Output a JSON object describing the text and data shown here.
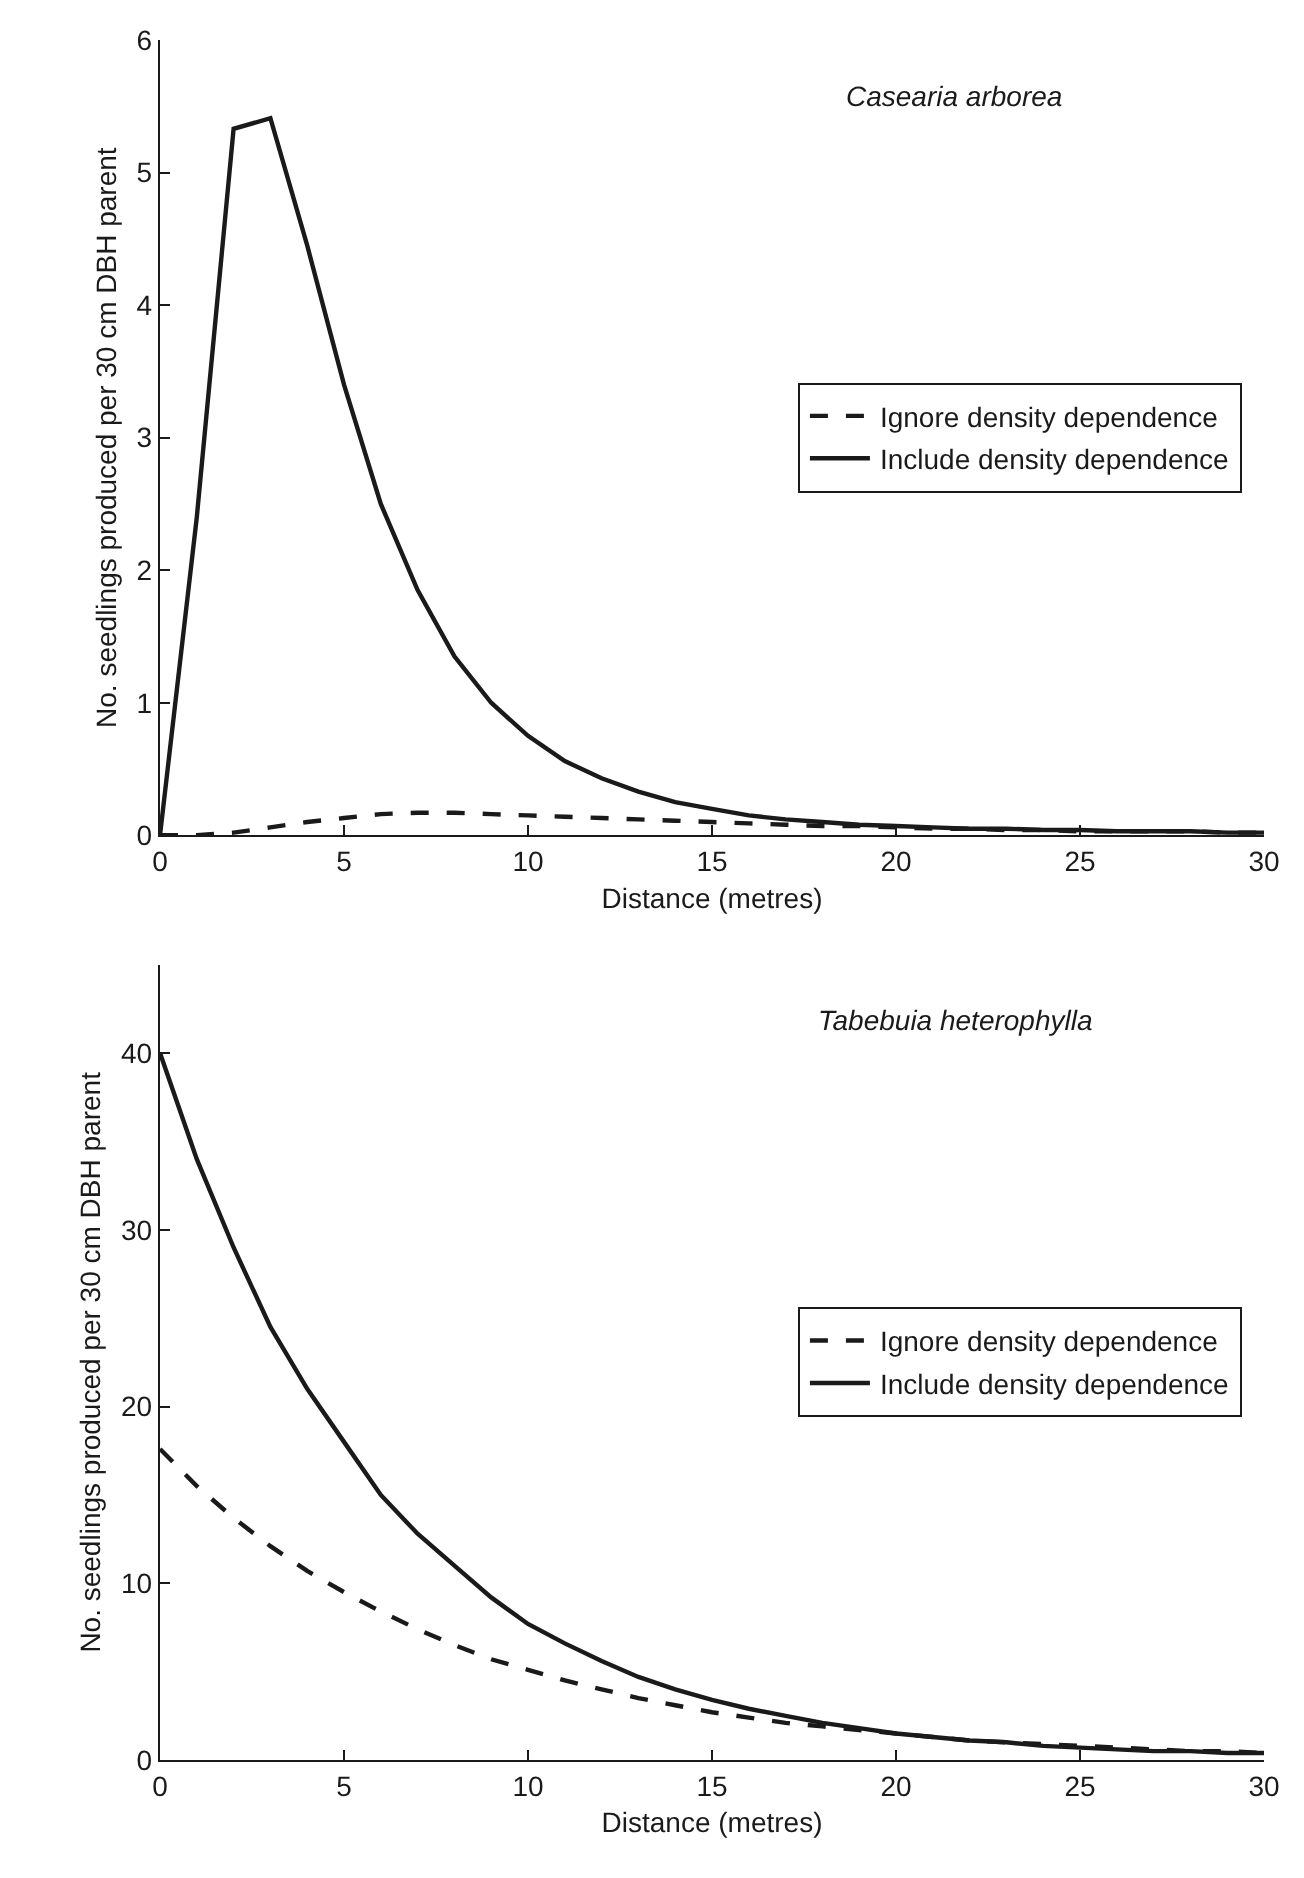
{
  "chart_data": [
    {
      "type": "line",
      "xlabel": "Distance (metres)",
      "ylabel": "No. seedlings produced per 30 cm DBH parent",
      "annotations": [
        "Casearia arborea"
      ],
      "x": [
        0,
        1,
        2,
        3,
        4,
        5,
        6,
        7,
        8,
        9,
        10,
        11,
        12,
        13,
        14,
        15,
        16,
        17,
        18,
        19,
        20,
        21,
        22,
        23,
        24,
        25,
        26,
        27,
        28,
        29,
        30
      ],
      "xlim": [
        0,
        30
      ],
      "xticks": [
        0,
        5,
        10,
        15,
        20,
        25,
        30
      ],
      "ylim": [
        0,
        6
      ],
      "yticks": [
        0,
        1,
        2,
        3,
        4,
        5,
        6
      ],
      "legend": "right",
      "series": [
        {
          "name": "Ignore density dependence",
          "color": "#1a1a1a",
          "line_style": "dashed",
          "values": [
            0,
            0,
            0.02,
            0.06,
            0.1,
            0.13,
            0.16,
            0.17,
            0.17,
            0.16,
            0.15,
            0.14,
            0.13,
            0.12,
            0.11,
            0.1,
            0.09,
            0.08,
            0.07,
            0.07,
            0.06,
            0.05,
            0.05,
            0.04,
            0.04,
            0.03,
            0.03,
            0.03,
            0.03,
            0.02,
            0.02
          ]
        },
        {
          "name": "Include density dependence",
          "color": "#1a1a1a",
          "line_style": "solid",
          "values": [
            0,
            2.4,
            5.33,
            5.41,
            4.45,
            3.4,
            2.5,
            1.85,
            1.35,
            1.0,
            0.75,
            0.56,
            0.43,
            0.33,
            0.25,
            0.2,
            0.15,
            0.12,
            0.1,
            0.08,
            0.07,
            0.06,
            0.05,
            0.05,
            0.04,
            0.04,
            0.03,
            0.03,
            0.03,
            0.02,
            0.02
          ]
        }
      ]
    },
    {
      "type": "line",
      "xlabel": "Distance (metres)",
      "ylabel": "No. seedlings produced per 30 cm DBH parent",
      "annotations": [
        "Tabebuia heterophylla"
      ],
      "x": [
        0,
        1,
        2,
        3,
        4,
        5,
        6,
        7,
        8,
        9,
        10,
        11,
        12,
        13,
        14,
        15,
        16,
        17,
        18,
        19,
        20,
        21,
        22,
        23,
        24,
        25,
        26,
        27,
        28,
        29,
        30
      ],
      "xlim": [
        0,
        30
      ],
      "xticks": [
        0,
        5,
        10,
        15,
        20,
        25,
        30
      ],
      "ylim": [
        0,
        45
      ],
      "yticks": [
        0,
        10,
        20,
        30,
        40
      ],
      "legend": "right",
      "series": [
        {
          "name": "Ignore density dependence",
          "color": "#1a1a1a",
          "line_style": "dashed",
          "values": [
            17.6,
            15.5,
            13.7,
            12.1,
            10.7,
            9.5,
            8.4,
            7.4,
            6.5,
            5.7,
            5.1,
            4.5,
            4.0,
            3.5,
            3.1,
            2.7,
            2.4,
            2.1,
            1.9,
            1.7,
            1.5,
            1.3,
            1.1,
            1.0,
            0.9,
            0.8,
            0.7,
            0.6,
            0.5,
            0.5,
            0.4
          ]
        },
        {
          "name": "Include density dependence",
          "color": "#1a1a1a",
          "line_style": "solid",
          "values": [
            40,
            34,
            29,
            24.5,
            21,
            18,
            15,
            12.8,
            11,
            9.2,
            7.7,
            6.6,
            5.6,
            4.7,
            4.0,
            3.4,
            2.9,
            2.5,
            2.1,
            1.8,
            1.5,
            1.3,
            1.1,
            1.0,
            0.8,
            0.7,
            0.6,
            0.5,
            0.5,
            0.4,
            0.4
          ]
        }
      ]
    }
  ]
}
